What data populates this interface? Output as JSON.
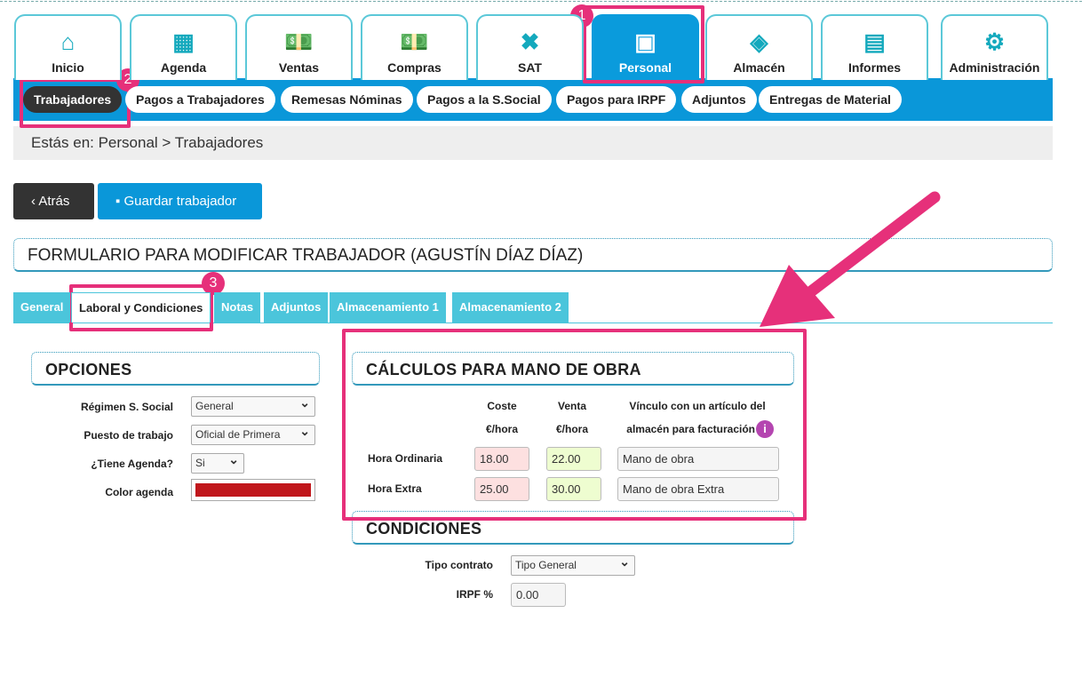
{
  "main_nav": [
    {
      "label": "Inicio",
      "icon": "home-icon",
      "glyph": "⌂"
    },
    {
      "label": "Agenda",
      "icon": "calendar-icon",
      "glyph": "▦"
    },
    {
      "label": "Ventas",
      "icon": "money-plus-icon",
      "glyph": "💵"
    },
    {
      "label": "Compras",
      "icon": "money-minus-icon",
      "glyph": "💵"
    },
    {
      "label": "SAT",
      "icon": "tools-icon",
      "glyph": "✖"
    },
    {
      "label": "Personal",
      "icon": "id-card-icon",
      "glyph": "▣"
    },
    {
      "label": "Almacén",
      "icon": "boxes-icon",
      "glyph": "◈"
    },
    {
      "label": "Informes",
      "icon": "clipboard-icon",
      "glyph": "▤"
    },
    {
      "label": "Administración",
      "icon": "gears-icon",
      "glyph": "⚙"
    }
  ],
  "active_nav": "Personal",
  "sub_nav": [
    "Trabajadores",
    "Pagos a Trabajadores",
    "Remesas Nóminas",
    "Pagos a la S.Social",
    "Pagos para IRPF",
    "Adjuntos",
    "Entregas de Material"
  ],
  "breadcrumb": "Estás en: Personal > Trabajadores",
  "buttons": {
    "back": "Atrás",
    "save": "Guardar trabajador"
  },
  "form_title": "FORMULARIO PARA MODIFICAR TRABAJADOR (AGUSTÍN DÍAZ DÍAZ)",
  "tabs": [
    "General",
    "Laboral y Condiciones",
    "Notas",
    "Adjuntos",
    "Almacenamiento 1",
    "Almacenamiento 2"
  ],
  "opciones": {
    "title": "OPCIONES",
    "fields": [
      {
        "label": "Régimen S. Social",
        "value": "General"
      },
      {
        "label": "Puesto de trabajo",
        "value": "Oficial de Primera"
      },
      {
        "label": "¿Tiene Agenda?",
        "value": "Si"
      },
      {
        "label": "Color agenda",
        "value": "#c0161b"
      }
    ]
  },
  "calculos": {
    "title": "CÁLCULOS PARA MANO DE OBRA",
    "headers": {
      "coste": "Coste",
      "coste_unit": "€/hora",
      "venta": "Venta",
      "venta_unit": "€/hora",
      "vinculo1": "Vínculo con un artículo del",
      "vinculo2": "almacén para facturación"
    },
    "rows": [
      {
        "label": "Hora Ordinaria",
        "coste": "18.00",
        "venta": "22.00",
        "articulo": "Mano de obra"
      },
      {
        "label": "Hora Extra",
        "coste": "25.00",
        "venta": "30.00",
        "articulo": "Mano de obra Extra"
      }
    ]
  },
  "condiciones": {
    "title": "CONDICIONES",
    "tipo_label": "Tipo contrato",
    "tipo_value": "Tipo General",
    "irpf_label": "IRPF %",
    "irpf_value": "0.00"
  },
  "annotations": [
    "1",
    "2",
    "3"
  ],
  "colors": {
    "accent": "#0a97d9",
    "teal": "#4bc5db",
    "annotation": "#e6307a",
    "coste_bg": "#fde0e0",
    "venta_bg": "#eefdd0"
  }
}
